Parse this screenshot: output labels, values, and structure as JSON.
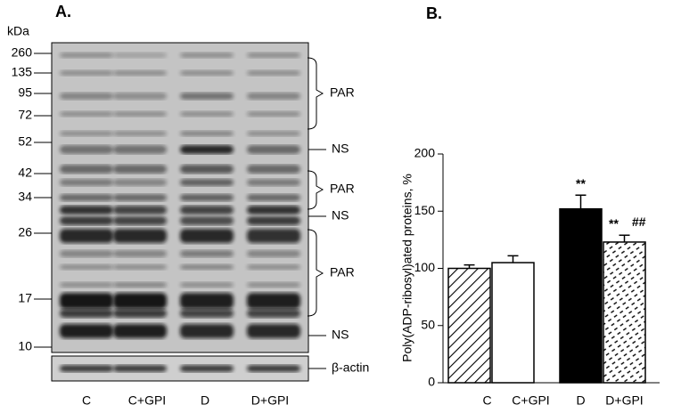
{
  "panel_a": {
    "label": "A.",
    "unit": "kDa",
    "markers": [
      260,
      135,
      95,
      72,
      52,
      42,
      34,
      26,
      17,
      10
    ],
    "annotations": [
      "PAR",
      "NS",
      "PAR",
      "NS",
      "PAR",
      "NS"
    ],
    "loading_control": "β-actin",
    "lanes": [
      "C",
      "C+GPI",
      "D",
      "D+GPI"
    ]
  },
  "chart_data": {
    "type": "bar",
    "panel_label": "B.",
    "y_label": "Poly(ADP-ribosyl)ated proteins,  %",
    "categories": [
      "C",
      "C+GPI",
      "D",
      "D+GPI"
    ],
    "values": [
      100,
      105,
      152,
      123
    ],
    "errors": [
      3,
      6,
      12,
      6
    ],
    "patterns": [
      "diagonal",
      "none",
      "solid",
      "dashed"
    ],
    "significance_vs_c": [
      null,
      null,
      "**",
      "**"
    ],
    "significance_vs_d": [
      null,
      null,
      null,
      "##"
    ],
    "ylim": [
      0,
      200
    ],
    "yticks": [
      0,
      50,
      100,
      150,
      200
    ]
  }
}
